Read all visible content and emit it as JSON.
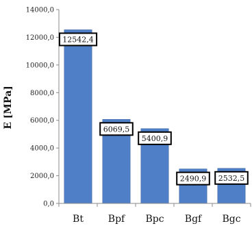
{
  "chart_data": {
    "type": "bar",
    "categories": [
      "Bt",
      "Bpf",
      "Bpc",
      "Bgf",
      "Bgc"
    ],
    "values": [
      12542.4,
      6069.5,
      5400.9,
      2490.9,
      2532.5
    ],
    "data_labels": [
      "12542,4",
      "6069,5",
      "5400,9",
      "2490,9",
      "2532,5"
    ],
    "ylabel": "E [MPa]",
    "ylim": [
      0,
      14000
    ],
    "yticks": [
      0,
      2000,
      4000,
      6000,
      8000,
      10000,
      12000,
      14000
    ],
    "ytick_labels": [
      "0,0",
      "2000,0",
      "4000,0",
      "6000,0",
      "8000,0",
      "10000,0",
      "12000,0",
      "14000,0"
    ],
    "grid": false,
    "legend": "none",
    "bar_color": "#4f7fc6"
  }
}
